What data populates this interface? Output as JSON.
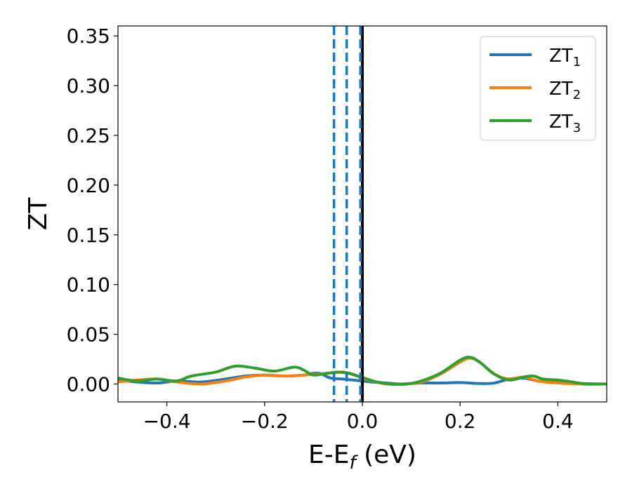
{
  "chart_data": {
    "type": "line",
    "xlabel": "E-E",
    "xlabel_sub": "f",
    "xlabel_unit": " (eV)",
    "ylabel": "ZT",
    "xlim": [
      -0.5,
      0.5
    ],
    "ylim": [
      -0.018,
      0.36
    ],
    "xticks": [
      -0.4,
      -0.2,
      0.0,
      0.2,
      0.4
    ],
    "xtick_labels": [
      "−0.4",
      "−0.2",
      "0.0",
      "0.2",
      "0.4"
    ],
    "yticks": [
      0.0,
      0.05,
      0.1,
      0.15,
      0.2,
      0.25,
      0.3,
      0.35
    ],
    "ytick_labels": [
      "0.00",
      "0.05",
      "0.10",
      "0.15",
      "0.20",
      "0.25",
      "0.30",
      "0.35"
    ],
    "grid": false,
    "legend_position": "top-right",
    "series": [
      {
        "name": "ZT",
        "subscript": "1",
        "color": "#1f77b4",
        "x": [
          -0.5,
          -0.46,
          -0.42,
          -0.38,
          -0.33,
          -0.28,
          -0.24,
          -0.2,
          -0.16,
          -0.12,
          -0.09,
          -0.065,
          -0.04,
          -0.02,
          0.0,
          0.02,
          0.05,
          0.08,
          0.12,
          0.16,
          0.2,
          0.24,
          0.27,
          0.3,
          0.33,
          0.36,
          0.4,
          0.45,
          0.5
        ],
        "y": [
          0.004,
          0.002,
          0.001,
          0.003,
          0.002,
          0.005,
          0.008,
          0.009,
          0.008,
          0.009,
          0.011,
          0.006,
          0.005,
          0.004,
          0.003,
          0.002,
          0.001,
          0.0,
          0.001,
          0.001,
          0.0015,
          0.0005,
          0.001,
          0.005,
          0.006,
          0.003,
          0.002,
          0.0005,
          0.0
        ]
      },
      {
        "name": "ZT",
        "subscript": "2",
        "color": "#ff7f0e",
        "x": [
          -0.5,
          -0.46,
          -0.42,
          -0.38,
          -0.33,
          -0.28,
          -0.24,
          -0.2,
          -0.16,
          -0.12,
          -0.09,
          -0.065,
          -0.04,
          -0.02,
          0.0,
          0.02,
          0.05,
          0.08,
          0.12,
          0.16,
          0.2,
          0.22,
          0.24,
          0.27,
          0.3,
          0.33,
          0.36,
          0.4,
          0.45,
          0.5
        ],
        "y": [
          0.002,
          0.004,
          0.005,
          0.002,
          0.0,
          0.003,
          0.007,
          0.009,
          0.008,
          0.009,
          0.01,
          0.011,
          0.012,
          0.01,
          0.006,
          0.003,
          0.0,
          0.0,
          0.002,
          0.01,
          0.022,
          0.026,
          0.022,
          0.01,
          0.005,
          0.007,
          0.003,
          0.001,
          0.0,
          0.0
        ]
      },
      {
        "name": "ZT",
        "subscript": "3",
        "color": "#2ca02c",
        "x": [
          -0.5,
          -0.46,
          -0.42,
          -0.38,
          -0.35,
          -0.3,
          -0.26,
          -0.22,
          -0.18,
          -0.14,
          -0.12,
          -0.1,
          -0.07,
          -0.05,
          -0.03,
          -0.01,
          0.01,
          0.03,
          0.06,
          0.09,
          0.12,
          0.16,
          0.2,
          0.22,
          0.24,
          0.27,
          0.3,
          0.33,
          0.35,
          0.37,
          0.4,
          0.43,
          0.46,
          0.5
        ],
        "y": [
          0.006,
          0.003,
          0.005,
          0.003,
          0.008,
          0.012,
          0.018,
          0.016,
          0.013,
          0.017,
          0.014,
          0.009,
          0.011,
          0.012,
          0.011,
          0.008,
          0.005,
          0.002,
          0.0,
          0.0,
          0.003,
          0.011,
          0.024,
          0.027,
          0.022,
          0.01,
          0.004,
          0.007,
          0.008,
          0.005,
          0.004,
          0.002,
          0.0,
          0.0
        ]
      }
    ],
    "reference_lines": [
      {
        "x": 0.0,
        "color": "#000000",
        "style": "solid"
      },
      {
        "x": -0.058,
        "color": "#1f77b4",
        "style": "dashed"
      },
      {
        "x": -0.032,
        "color": "#1f77b4",
        "style": "dashed"
      },
      {
        "x": -0.004,
        "color": "#1f77b4",
        "style": "dashed"
      }
    ]
  }
}
